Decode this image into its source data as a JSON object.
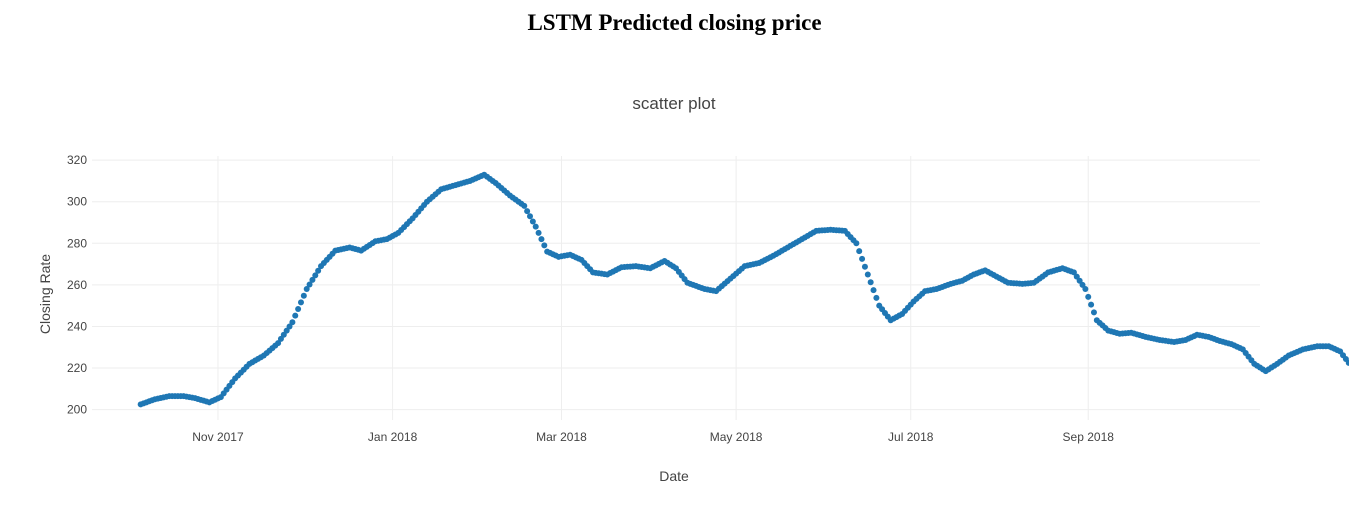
{
  "page_title": "LSTM Predicted closing price",
  "chart_data": {
    "type": "scatter",
    "title": "scatter plot",
    "xlabel": "Date",
    "ylabel": "Closing Rate",
    "xlim": [
      "2017-09-18",
      "2018-10-31"
    ],
    "ylim": [
      195,
      322
    ],
    "x_ticks": [
      {
        "date": "2017-11-01",
        "label": "Nov 2017"
      },
      {
        "date": "2018-01-01",
        "label": "Jan 2018"
      },
      {
        "date": "2018-03-01",
        "label": "Mar 2018"
      },
      {
        "date": "2018-05-01",
        "label": "May 2018"
      },
      {
        "date": "2018-07-01",
        "label": "Jul 2018"
      },
      {
        "date": "2018-09-01",
        "label": "Sep 2018"
      }
    ],
    "y_ticks": [
      200,
      220,
      240,
      260,
      280,
      300,
      320
    ],
    "grid": true,
    "color": "#1f77b4",
    "series": [
      {
        "name": "LSTM Predicted",
        "anchors": [
          [
            "2017-10-05",
            202.5
          ],
          [
            "2017-10-10",
            205
          ],
          [
            "2017-10-15",
            206.5
          ],
          [
            "2017-10-20",
            206.5
          ],
          [
            "2017-10-24",
            205.5
          ],
          [
            "2017-10-29",
            203.5
          ],
          [
            "2017-11-02",
            206
          ],
          [
            "2017-11-07",
            215
          ],
          [
            "2017-11-12",
            222
          ],
          [
            "2017-11-17",
            226
          ],
          [
            "2017-11-22",
            232
          ],
          [
            "2017-11-27",
            242
          ],
          [
            "2017-12-02",
            258
          ],
          [
            "2017-12-07",
            269
          ],
          [
            "2017-12-12",
            276.5
          ],
          [
            "2017-12-17",
            278
          ],
          [
            "2017-12-21",
            276.5
          ],
          [
            "2017-12-26",
            281
          ],
          [
            "2017-12-30",
            282
          ],
          [
            "2018-01-03",
            285
          ],
          [
            "2018-01-08",
            292
          ],
          [
            "2018-01-13",
            300
          ],
          [
            "2018-01-18",
            306
          ],
          [
            "2018-01-23",
            308
          ],
          [
            "2018-01-28",
            310
          ],
          [
            "2018-02-02",
            313
          ],
          [
            "2018-02-06",
            309
          ],
          [
            "2018-02-11",
            303
          ],
          [
            "2018-02-16",
            298
          ],
          [
            "2018-02-20",
            288
          ],
          [
            "2018-02-24",
            276
          ],
          [
            "2018-02-28",
            273.5
          ],
          [
            "2018-03-04",
            274.5
          ],
          [
            "2018-03-08",
            272
          ],
          [
            "2018-03-12",
            266
          ],
          [
            "2018-03-17",
            265
          ],
          [
            "2018-03-22",
            268.5
          ],
          [
            "2018-03-27",
            269
          ],
          [
            "2018-04-01",
            268
          ],
          [
            "2018-04-06",
            271.5
          ],
          [
            "2018-04-10",
            268
          ],
          [
            "2018-04-14",
            261
          ],
          [
            "2018-04-20",
            258
          ],
          [
            "2018-04-24",
            257
          ],
          [
            "2018-04-29",
            263
          ],
          [
            "2018-05-04",
            269
          ],
          [
            "2018-05-09",
            270.5
          ],
          [
            "2018-05-14",
            274
          ],
          [
            "2018-05-19",
            278
          ],
          [
            "2018-05-24",
            282
          ],
          [
            "2018-05-29",
            286
          ],
          [
            "2018-06-03",
            286.5
          ],
          [
            "2018-06-08",
            286
          ],
          [
            "2018-06-12",
            280
          ],
          [
            "2018-06-16",
            265
          ],
          [
            "2018-06-20",
            250
          ],
          [
            "2018-06-24",
            243
          ],
          [
            "2018-06-28",
            246
          ],
          [
            "2018-07-02",
            252
          ],
          [
            "2018-07-06",
            257
          ],
          [
            "2018-07-10",
            258
          ],
          [
            "2018-07-15",
            260.5
          ],
          [
            "2018-07-19",
            262
          ],
          [
            "2018-07-23",
            265
          ],
          [
            "2018-07-27",
            267
          ],
          [
            "2018-07-31",
            264
          ],
          [
            "2018-08-04",
            261
          ],
          [
            "2018-08-09",
            260.5
          ],
          [
            "2018-08-13",
            261
          ],
          [
            "2018-08-18",
            266
          ],
          [
            "2018-08-23",
            268
          ],
          [
            "2018-08-27",
            266
          ],
          [
            "2018-08-31",
            258
          ],
          [
            "2018-09-04",
            243
          ],
          [
            "2018-09-08",
            238
          ],
          [
            "2018-09-12",
            236.5
          ],
          [
            "2018-09-16",
            237
          ],
          [
            "2018-09-21",
            235
          ],
          [
            "2018-09-26",
            233.5
          ],
          [
            "2018-10-01",
            232.5
          ],
          [
            "2018-10-05",
            233.5
          ],
          [
            "2018-10-09",
            236
          ],
          [
            "2018-10-13",
            235
          ],
          [
            "2018-10-17",
            233
          ],
          [
            "2018-10-21",
            231.5
          ],
          [
            "2018-10-25",
            229
          ],
          [
            "2018-10-29",
            222
          ],
          [
            "2018-11-02",
            218.5
          ],
          [
            "2018-11-06",
            222
          ],
          [
            "2018-11-10",
            226
          ],
          [
            "2018-11-15",
            229
          ],
          [
            "2018-11-20",
            230.5
          ],
          [
            "2018-11-24",
            230.5
          ],
          [
            "2018-11-28",
            228
          ],
          [
            "2018-12-01",
            222.5
          ]
        ]
      }
    ]
  }
}
